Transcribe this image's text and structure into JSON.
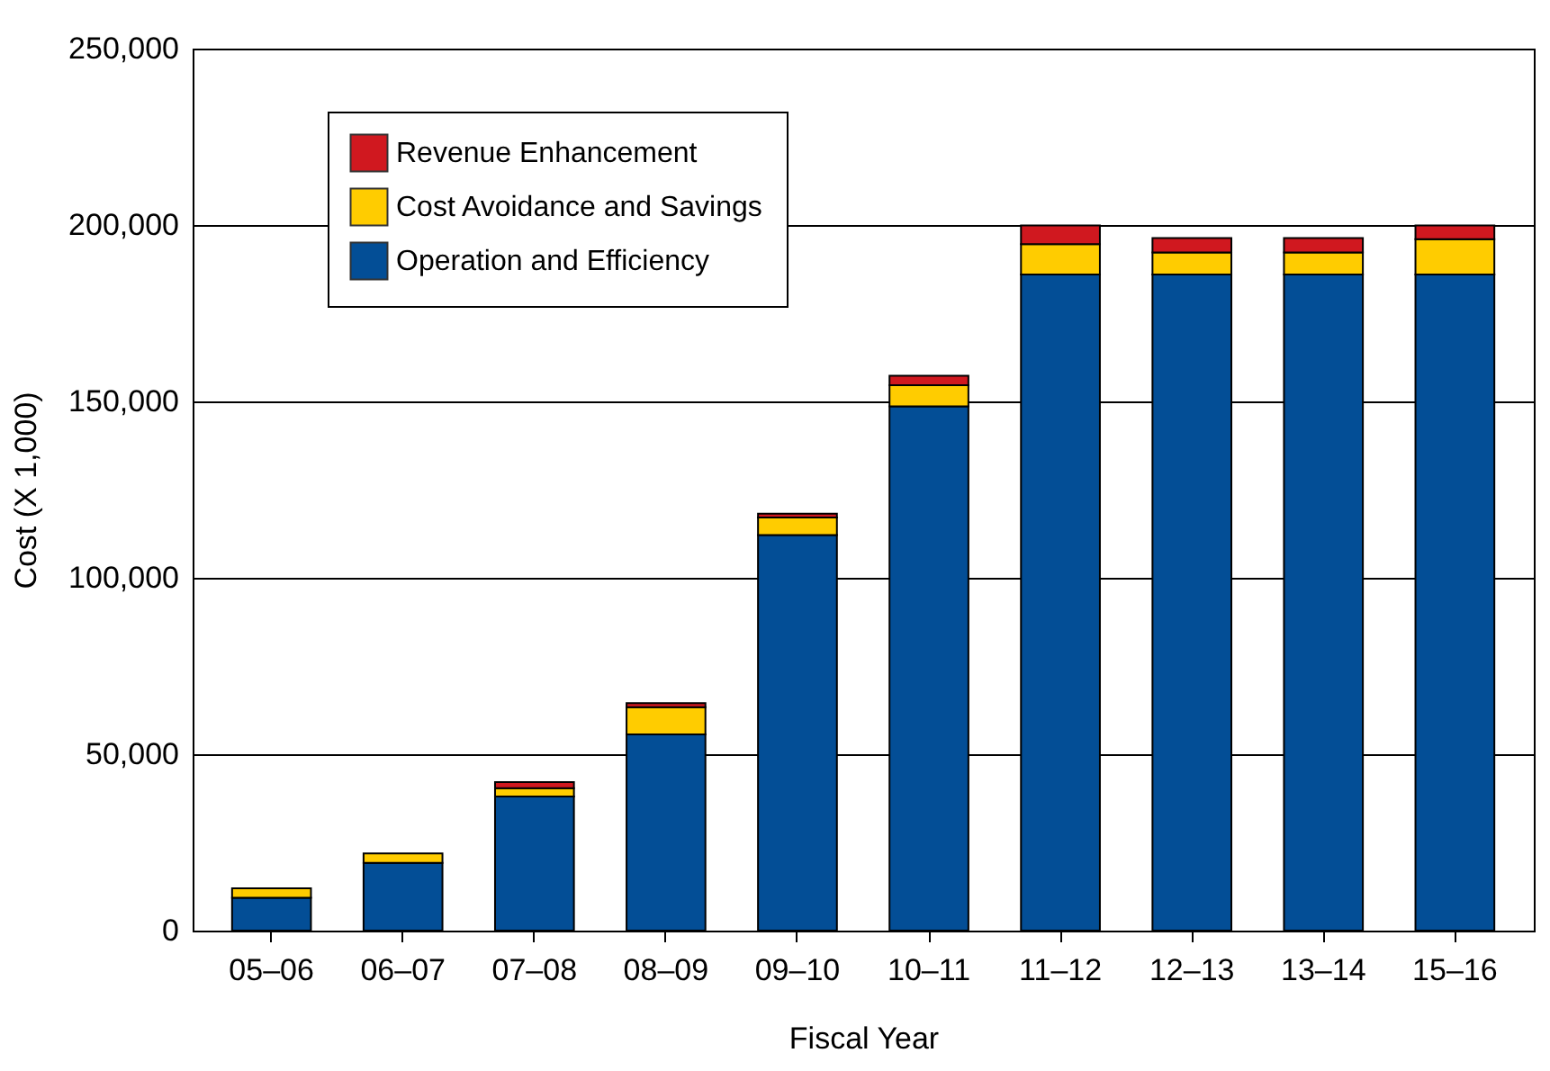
{
  "chart_data": {
    "type": "bar",
    "stacked": true,
    "xlabel": "Fiscal Year",
    "ylabel": "Cost (X 1,000)",
    "categories": [
      "05–06",
      "06–07",
      "07–08",
      "08–09",
      "09–10",
      "10–11",
      "11–12",
      "12–13",
      "13–14",
      "15–16"
    ],
    "series": [
      {
        "name": "Operation and Efficiency",
        "color": "#034e96",
        "values": [
          9300,
          19200,
          38000,
          55600,
          112100,
          148600,
          186000,
          186000,
          186000,
          186000
        ]
      },
      {
        "name": "Cost Avoidance and Savings",
        "color": "#ffcc00",
        "values": [
          2700,
          2700,
          2400,
          7700,
          5000,
          6000,
          8600,
          6200,
          6200,
          10000
        ]
      },
      {
        "name": "Revenue Enhancement",
        "color": "#d0181f",
        "values": [
          null,
          null,
          1700,
          1200,
          1100,
          2700,
          5300,
          4100,
          4100,
          3900
        ]
      }
    ],
    "ylim": [
      0,
      250000
    ],
    "yticks": [
      0,
      {
        "value": 50000,
        "label": "50,000"
      },
      {
        "value": 100000,
        "label": "100,000"
      },
      {
        "value": 150000,
        "label": "150,000"
      },
      {
        "value": 200000,
        "label": "200,000"
      },
      {
        "value": 250000,
        "label": "250,000"
      }
    ],
    "grid": "y",
    "legend": "top left"
  }
}
